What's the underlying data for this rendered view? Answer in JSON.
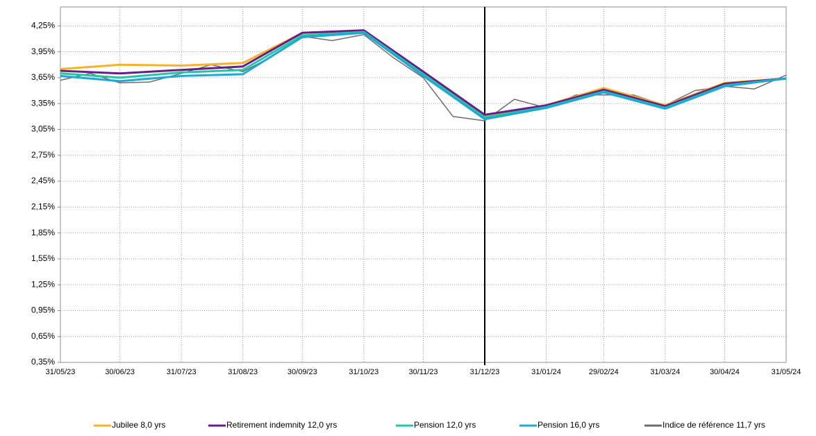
{
  "chart_data": {
    "type": "line",
    "x": [
      "31/05/23",
      "30/06/23",
      "31/07/23",
      "31/08/23",
      "30/09/23",
      "31/10/23",
      "30/11/23",
      "31/12/23",
      "31/01/24",
      "29/02/24",
      "31/03/24",
      "30/04/24",
      "31/05/24"
    ],
    "xlim": [
      "31/05/23",
      "31/05/24"
    ],
    "ylim": [
      0.35,
      4.47
    ],
    "yticks": [
      {
        "value": 0.35,
        "label": "0,35%"
      },
      {
        "value": 0.65,
        "label": "0,65%"
      },
      {
        "value": 0.95,
        "label": "0,95%"
      },
      {
        "value": 1.25,
        "label": "1,25%"
      },
      {
        "value": 1.55,
        "label": "1,55%"
      },
      {
        "value": 1.85,
        "label": "1,85%"
      },
      {
        "value": 2.15,
        "label": "2,15%"
      },
      {
        "value": 2.45,
        "label": "2,45%"
      },
      {
        "value": 2.75,
        "label": "2,75%"
      },
      {
        "value": 3.05,
        "label": "3,05%"
      },
      {
        "value": 3.35,
        "label": "3,35%"
      },
      {
        "value": 3.65,
        "label": "3,65%"
      },
      {
        "value": 3.95,
        "label": "3,95%"
      },
      {
        "value": 4.25,
        "label": "4,25%"
      }
    ],
    "grid": true,
    "vline": "31/12/23",
    "series": [
      {
        "name": "Jubilee 8,0 yrs",
        "color": "#f5b325",
        "values": [
          3.75,
          3.8,
          3.79,
          3.82,
          4.17,
          4.19,
          3.71,
          3.21,
          3.33,
          3.53,
          3.33,
          3.59,
          3.64
        ]
      },
      {
        "name": "Retirement indemnity 12,0 yrs",
        "color": "#6a1b8a",
        "values": [
          3.73,
          3.7,
          3.74,
          3.78,
          4.17,
          4.2,
          3.72,
          3.22,
          3.33,
          3.51,
          3.32,
          3.58,
          3.64
        ]
      },
      {
        "name": "Pension 12,0 yrs",
        "color": "#1fc8a0",
        "values": [
          3.7,
          3.65,
          3.71,
          3.74,
          4.14,
          4.18,
          3.69,
          3.19,
          3.31,
          3.49,
          3.3,
          3.56,
          3.64
        ]
      },
      {
        "name": "Pension 16,0 yrs",
        "color": "#1ea7d8",
        "values": [
          3.67,
          3.61,
          3.67,
          3.69,
          4.12,
          4.17,
          3.67,
          3.17,
          3.3,
          3.48,
          3.29,
          3.55,
          3.64
        ]
      },
      {
        "name": "Indice de référence 11,7 yrs",
        "color": "#6d6d6d",
        "x": [
          "31/05/23",
          "15/06/23",
          "30/06/23",
          "15/07/23",
          "31/07/23",
          "15/08/23",
          "31/08/23",
          "15/09/23",
          "30/09/23",
          "15/10/23",
          "31/10/23",
          "15/11/23",
          "30/11/23",
          "15/12/23",
          "31/12/23",
          "15/01/24",
          "31/01/24",
          "15/02/24",
          "29/02/24",
          "15/03/24",
          "31/03/24",
          "15/04/24",
          "30/04/24",
          "15/05/24",
          "31/05/24"
        ],
        "values": [
          3.62,
          3.7,
          3.59,
          3.6,
          3.7,
          3.8,
          3.72,
          3.9,
          4.13,
          4.08,
          4.15,
          3.88,
          3.65,
          3.2,
          3.15,
          3.4,
          3.3,
          3.45,
          3.45,
          3.45,
          3.33,
          3.5,
          3.55,
          3.52,
          3.68
        ]
      }
    ]
  }
}
